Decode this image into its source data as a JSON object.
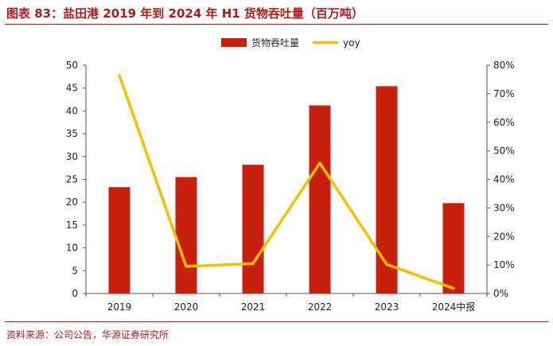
{
  "header": {
    "title": "图表 83：盐田港 2019 年到 2024 年 H1 货物吞吐量（百万吨）"
  },
  "footer": {
    "source": "资料来源：公司公告，华源证券研究所"
  },
  "colors": {
    "bar": "#c8200e",
    "line": "#f5c000",
    "brand": "#b01a1a"
  },
  "chart_data": {
    "type": "bar",
    "title": "盐田港 2019 年到 2024 年 H1 货物吞吐量（百万吨）",
    "categories": [
      "2019",
      "2020",
      "2021",
      "2022",
      "2023",
      "2024中报"
    ],
    "series": [
      {
        "name": "货物吞吐量",
        "type": "bar",
        "axis": "left",
        "values": [
          23.3,
          25.5,
          28.2,
          41.2,
          45.4,
          19.8
        ]
      },
      {
        "name": "yoy",
        "type": "line",
        "axis": "right",
        "values": [
          76.5,
          9.5,
          10.5,
          45.7,
          10.2,
          1.8
        ]
      }
    ],
    "y_left": {
      "min": 0,
      "max": 50,
      "step": 5,
      "tick_labels": [
        "0",
        "5",
        "10",
        "15",
        "20",
        "25",
        "30",
        "35",
        "40",
        "45",
        "50"
      ]
    },
    "y_right": {
      "min": 0,
      "max": 80,
      "step": 10,
      "unit": "%",
      "tick_labels": [
        "0%",
        "10%",
        "20%",
        "30%",
        "40%",
        "50%",
        "60%",
        "70%",
        "80%"
      ]
    },
    "legend": {
      "position": "top-center",
      "entries": [
        "货物吞吐量",
        "yoy"
      ]
    },
    "grid": false
  }
}
